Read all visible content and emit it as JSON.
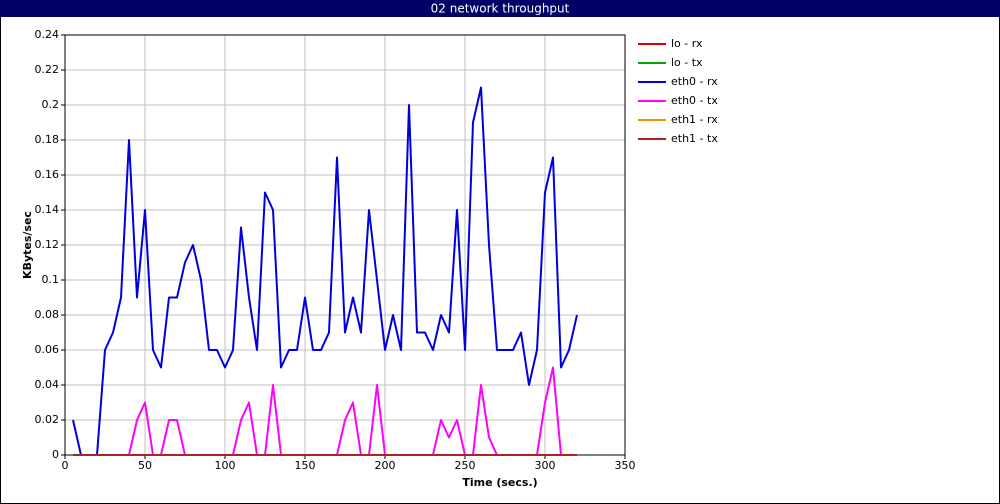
{
  "chart_data": {
    "type": "line",
    "title": "02 network throughput",
    "x_label": "Time (secs.)",
    "y_label": "KBytes/sec",
    "xlim": [
      0,
      350
    ],
    "xticks": [
      0,
      50,
      100,
      150,
      200,
      250,
      300,
      350
    ],
    "ylim": [
      0,
      0.24
    ],
    "yticks": [
      0,
      0.02,
      0.04,
      0.06,
      0.08,
      0.1,
      0.12,
      0.14,
      0.16,
      0.18,
      0.2,
      0.22,
      0.24
    ],
    "grid": true,
    "legend": "right",
    "x": [
      5,
      10,
      15,
      20,
      25,
      30,
      35,
      40,
      45,
      50,
      55,
      60,
      65,
      70,
      75,
      80,
      85,
      90,
      95,
      100,
      105,
      110,
      115,
      120,
      125,
      130,
      135,
      140,
      145,
      150,
      155,
      160,
      165,
      170,
      175,
      180,
      185,
      190,
      195,
      200,
      205,
      210,
      215,
      220,
      225,
      230,
      235,
      240,
      245,
      250,
      255,
      260,
      265,
      270,
      275,
      280,
      285,
      290,
      295,
      300,
      305,
      310,
      315,
      320
    ],
    "series": [
      {
        "name": "eth0 - rx",
        "color": "#0000dd",
        "values": [
          0.02,
          0,
          0,
          0,
          0.06,
          0.07,
          0.09,
          0.18,
          0.09,
          0.14,
          0.06,
          0.05,
          0.09,
          0.09,
          0.11,
          0.12,
          0.1,
          0.06,
          0.06,
          0.05,
          0.06,
          0.13,
          0.09,
          0.06,
          0.15,
          0.14,
          0.05,
          0.06,
          0.06,
          0.09,
          0.06,
          0.06,
          0.07,
          0.17,
          0.07,
          0.09,
          0.07,
          0.14,
          0.1,
          0.06,
          0.08,
          0.06,
          0.2,
          0.07,
          0.07,
          0.06,
          0.08,
          0.07,
          0.14,
          0.06,
          0.19,
          0.21,
          0.12,
          0.06,
          0.06,
          0.06,
          0.07,
          0.04,
          0.06,
          0.15,
          0.17,
          0.05,
          0.06,
          0.08
        ]
      },
      {
        "name": "eth0 - tx",
        "color": "#ff00ff",
        "values": [
          0,
          0,
          0,
          0,
          0,
          0,
          0,
          0,
          0.02,
          0.03,
          0,
          0,
          0.02,
          0.02,
          0,
          0,
          0,
          0,
          0,
          0,
          0,
          0.02,
          0.03,
          0,
          0,
          0.04,
          0,
          0,
          0,
          0,
          0,
          0,
          0,
          0,
          0.02,
          0.03,
          0,
          0,
          0.04,
          0,
          0,
          0,
          0,
          0,
          0,
          0,
          0.02,
          0.01,
          0.02,
          0,
          0,
          0.04,
          0.01,
          0,
          0,
          0,
          0,
          0,
          0,
          0.03,
          0.05,
          0,
          0,
          0
        ]
      },
      {
        "name": "lo - rx",
        "color": "#dd0000",
        "values": [
          0,
          0,
          0,
          0,
          0,
          0,
          0,
          0,
          0,
          0,
          0,
          0,
          0,
          0,
          0,
          0,
          0,
          0,
          0,
          0,
          0,
          0,
          0,
          0,
          0,
          0,
          0,
          0,
          0,
          0,
          0,
          0,
          0,
          0,
          0,
          0,
          0,
          0,
          0,
          0,
          0,
          0,
          0,
          0,
          0,
          0,
          0,
          0,
          0,
          0,
          0,
          0,
          0,
          0,
          0,
          0,
          0,
          0,
          0,
          0,
          0,
          0,
          0,
          0
        ]
      },
      {
        "name": "lo - tx",
        "color": "#00aa00",
        "values": [
          0,
          0,
          0,
          0,
          0,
          0,
          0,
          0,
          0,
          0,
          0,
          0,
          0,
          0,
          0,
          0,
          0,
          0,
          0,
          0,
          0,
          0,
          0,
          0,
          0,
          0,
          0,
          0,
          0,
          0,
          0,
          0,
          0,
          0,
          0,
          0,
          0,
          0,
          0,
          0,
          0,
          0,
          0,
          0,
          0,
          0,
          0,
          0,
          0,
          0,
          0,
          0,
          0,
          0,
          0,
          0,
          0,
          0,
          0,
          0,
          0,
          0,
          0,
          0
        ]
      },
      {
        "name": "eth1 - rx",
        "color": "#ee9900",
        "values": [
          0,
          0,
          0,
          0,
          0,
          0,
          0,
          0,
          0,
          0,
          0,
          0,
          0,
          0,
          0,
          0,
          0,
          0,
          0,
          0,
          0,
          0,
          0,
          0,
          0,
          0,
          0,
          0,
          0,
          0,
          0,
          0,
          0,
          0,
          0,
          0,
          0,
          0,
          0,
          0,
          0,
          0,
          0,
          0,
          0,
          0,
          0,
          0,
          0,
          0,
          0,
          0,
          0,
          0,
          0,
          0,
          0,
          0,
          0,
          0,
          0,
          0,
          0,
          0
        ]
      },
      {
        "name": "eth1 - tx",
        "color": "#aa2222",
        "values": [
          0,
          0,
          0,
          0,
          0,
          0,
          0,
          0,
          0,
          0,
          0,
          0,
          0,
          0,
          0,
          0,
          0,
          0,
          0,
          0,
          0,
          0,
          0,
          0,
          0,
          0,
          0,
          0,
          0,
          0,
          0,
          0,
          0,
          0,
          0,
          0,
          0,
          0,
          0,
          0,
          0,
          0,
          0,
          0,
          0,
          0,
          0,
          0,
          0,
          0,
          0,
          0,
          0,
          0,
          0,
          0,
          0,
          0,
          0,
          0,
          0,
          0,
          0,
          0
        ]
      }
    ],
    "legend_order": [
      2,
      3,
      0,
      1,
      4,
      5
    ]
  }
}
